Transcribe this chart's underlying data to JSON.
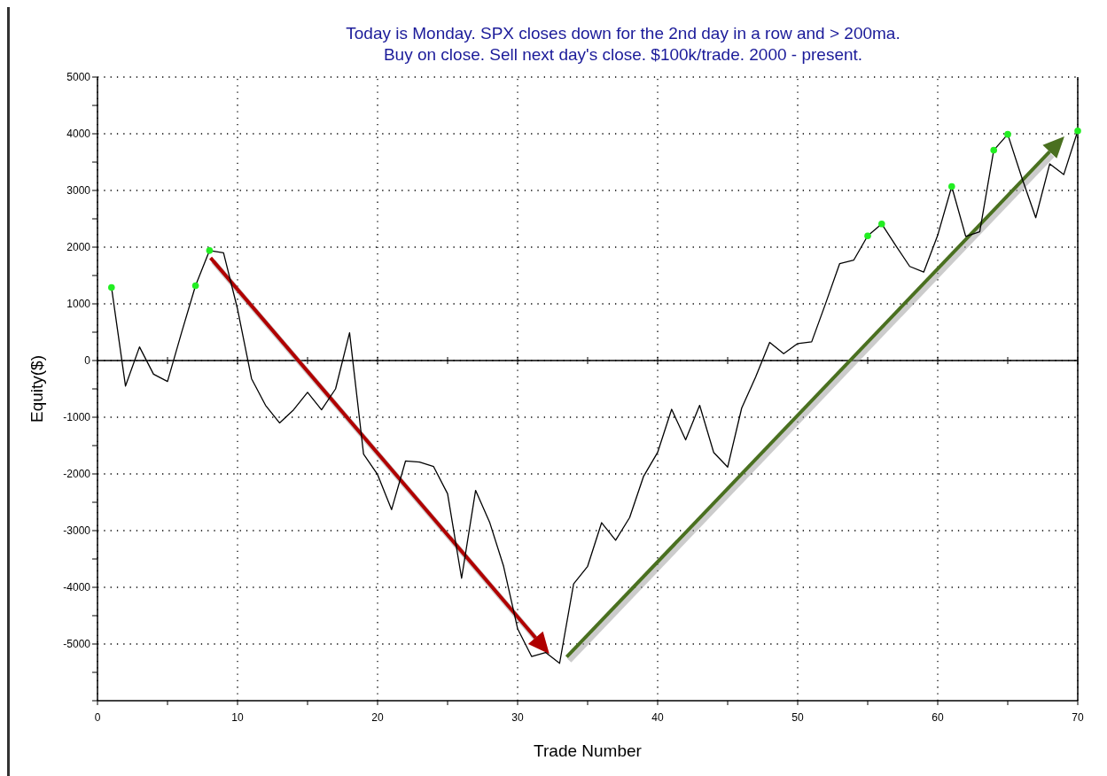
{
  "chart_data": {
    "type": "line",
    "title": "Today is Monday. SPX closes down for the 2nd day in a row and > 200ma.\nBuy on close. Sell next day's close. $100k/trade. 2000 - present.",
    "xlabel": "Trade Number",
    "ylabel": "Equity($)",
    "xlim": [
      0,
      70
    ],
    "ylim": [
      -6000,
      5000
    ],
    "xticks": [
      0,
      {
        "value": 5,
        "label": null
      },
      10,
      {
        "value": 15,
        "label": null
      },
      20,
      {
        "value": 25,
        "label": null
      },
      30,
      {
        "value": 35,
        "label": null
      },
      40,
      {
        "value": 45,
        "label": null
      },
      50,
      {
        "value": 55,
        "label": null
      },
      60,
      {
        "value": 65,
        "label": null
      },
      70
    ],
    "yticks": [
      {
        "value": -6000,
        "label": null
      },
      {
        "value": -5500,
        "label": null
      },
      -5000,
      {
        "value": -4500,
        "label": null
      },
      -4000,
      {
        "value": -3500,
        "label": null
      },
      -3000,
      {
        "value": -2500,
        "label": null
      },
      -2000,
      {
        "value": -1500,
        "label": null
      },
      -1000,
      {
        "value": -500,
        "label": null
      },
      0,
      {
        "value": 500,
        "label": null
      },
      1000,
      {
        "value": 1500,
        "label": null
      },
      2000,
      {
        "value": 2500,
        "label": null
      },
      3000,
      {
        "value": 3500,
        "label": null
      },
      4000,
      {
        "value": 4500,
        "label": null
      },
      5000
    ],
    "grid": true,
    "ref_lines": [
      {
        "axis": "y",
        "value": 0,
        "color": "#000000",
        "line_style": "solid"
      }
    ],
    "series": [
      {
        "color": "#000000",
        "marker": "none",
        "x": [
          1,
          2,
          3,
          4,
          5,
          6,
          7,
          8,
          9,
          10,
          11,
          12,
          13,
          14,
          15,
          16,
          17,
          18,
          19,
          20,
          21,
          22,
          23,
          24,
          25,
          26,
          27,
          28,
          29,
          30,
          31,
          32,
          33,
          34,
          35,
          36,
          37,
          38,
          39,
          40,
          41,
          42,
          43,
          44,
          45,
          46,
          47,
          48,
          49,
          50,
          51,
          52,
          53,
          54,
          55,
          56,
          57,
          58,
          59,
          60,
          61,
          62,
          63,
          64,
          65,
          66,
          67,
          68,
          69,
          70
        ],
        "values": [
          1290,
          -450,
          240,
          -240,
          -370,
          490,
          1320,
          1940,
          1900,
          910,
          -320,
          -790,
          -1100,
          -870,
          -560,
          -870,
          -500,
          490,
          -1650,
          -2010,
          -2630,
          -1770,
          -1790,
          -1870,
          -2350,
          -3840,
          -2290,
          -2850,
          -3630,
          -4730,
          -5220,
          -5150,
          -5340,
          -3940,
          -3630,
          -2860,
          -3170,
          -2770,
          -2040,
          -1620,
          -860,
          -1400,
          -790,
          -1620,
          -1880,
          -840,
          -290,
          320,
          120,
          300,
          330,
          1010,
          1710,
          1770,
          2200,
          2410,
          2030,
          1660,
          1560,
          2210,
          3070,
          2190,
          2270,
          3710,
          3990,
          3230,
          2520,
          3470,
          3280,
          4050
        ]
      },
      {
        "type": "scatter",
        "color": "#22ee22",
        "marker": "circle",
        "x": [
          1,
          7,
          8,
          55,
          56,
          61,
          64,
          65,
          70
        ],
        "values": [
          1290,
          1320,
          1940,
          2200,
          2410,
          3070,
          3710,
          3990,
          4050
        ]
      }
    ]
  }
}
